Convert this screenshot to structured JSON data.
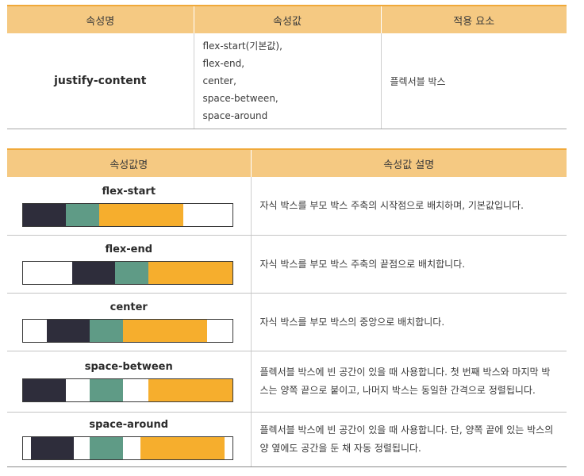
{
  "property_table": {
    "headers": [
      "속성명",
      "속성값",
      "적용 요소"
    ],
    "property_name": "justify-content",
    "values": [
      "flex-start(기본값),",
      "flex-end,",
      "center,",
      "space-between,",
      "space-around"
    ],
    "applies_to": "플렉서블 박스"
  },
  "value_table": {
    "headers": [
      "속성값명",
      "속성값 설명"
    ],
    "colors": {
      "dark": "#2e2d3b",
      "green": "#5f9b86",
      "orange": "#f6ae2d",
      "header_bg": "#f5c982"
    },
    "rows": [
      {
        "name": "flex-start",
        "description": "자식 박스를 부모 박스 주축의 시작점으로 배치하며, 기본값입니다."
      },
      {
        "name": "flex-end",
        "description": "자식 박스를 부모 박스 주축의 끝점으로 배치합니다."
      },
      {
        "name": "center",
        "description": "자식 박스를 부모 박스의 중앙으로 배치합니다."
      },
      {
        "name": "space-between",
        "description": "플렉서블 박스에 빈 공간이 있을 때 사용합니다. 첫 번째 박스와 마지막 박스는 양쪽 끝으로 붙이고, 나머지 박스는 동일한 간격으로 정렬됩니다."
      },
      {
        "name": "space-around",
        "description": "플렉서블 박스에 빈 공간이 있을 때 사용합니다. 단, 양쪽 끝에 있는 박스의 양 옆에도 공간을 둔 채 자동 정렬됩니다."
      }
    ]
  }
}
